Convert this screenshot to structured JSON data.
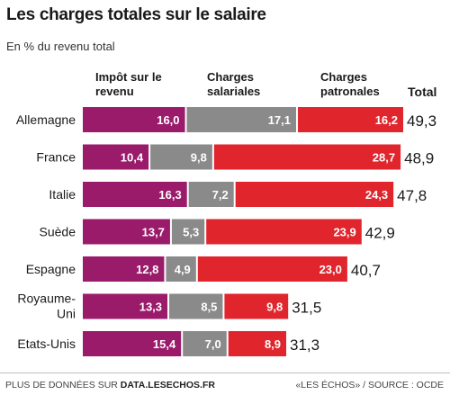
{
  "header": {
    "title": "Les charges totales sur le salaire",
    "subtitle": "En % du revenu total"
  },
  "columns": {
    "income_tax": "Impôt sur le revenu",
    "employee": "Charges salariales",
    "employer": "Charges patronales",
    "total": "Total"
  },
  "footer": {
    "prefix": "PLUS DE DONNÉES SUR ",
    "site": "DATA.LESECHOS.FR",
    "source": "«LES ÉCHOS» / SOURCE : OCDE"
  },
  "colors": {
    "income_tax": "#9b1b6b",
    "employee": "#8a8a8a",
    "employer": "#e1252d"
  },
  "chart_data": {
    "type": "bar",
    "orientation": "horizontal",
    "stacked": true,
    "categories": [
      "Allemagne",
      "France",
      "Italie",
      "Suède",
      "Espagne",
      "Royaume-Uni",
      "Etats-Unis"
    ],
    "category_lines": [
      [
        "Allemagne"
      ],
      [
        "France"
      ],
      [
        "Italie"
      ],
      [
        "Suède"
      ],
      [
        "Espagne"
      ],
      [
        "Royaume-",
        "Uni"
      ],
      [
        "Etats-Unis"
      ]
    ],
    "series": [
      {
        "name": "Impôt sur le revenu",
        "values": [
          16.0,
          10.4,
          16.3,
          13.7,
          12.8,
          13.3,
          15.4
        ],
        "labels": [
          "16,0",
          "10,4",
          "16,3",
          "13,7",
          "12,8",
          "13,3",
          "15,4"
        ]
      },
      {
        "name": "Charges salariales",
        "values": [
          17.1,
          9.8,
          7.2,
          5.3,
          4.9,
          8.5,
          7.0
        ],
        "labels": [
          "17,1",
          "9,8",
          "7,2",
          "5,3",
          "4,9",
          "8,5",
          "7,0"
        ]
      },
      {
        "name": "Charges patronales",
        "values": [
          16.2,
          28.7,
          24.3,
          23.9,
          23.0,
          9.8,
          8.9
        ],
        "labels": [
          "16,2",
          "28,7",
          "24,3",
          "23,9",
          "23,0",
          "9,8",
          "8,9"
        ]
      }
    ],
    "totals": [
      49.3,
      48.9,
      47.8,
      42.9,
      40.7,
      31.5,
      31.3
    ],
    "total_labels": [
      "49,3",
      "48,9",
      "47,8",
      "42,9",
      "40,7",
      "31,5",
      "31,3"
    ],
    "xlim": [
      0,
      49.3
    ]
  }
}
